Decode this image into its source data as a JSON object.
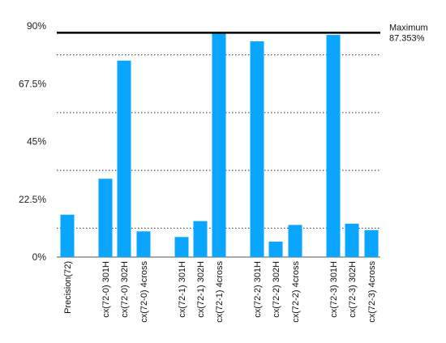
{
  "chart_data": {
    "type": "bar",
    "ylim": [
      0,
      90
    ],
    "yticks": [
      0,
      22.5,
      45,
      67.5,
      90
    ],
    "ytick_labels": [
      "0%",
      "22.5%",
      "45%",
      "67.5%",
      "90%"
    ],
    "grid_dotted": [
      11.25,
      33.75,
      56.25,
      78.75
    ],
    "categories": [
      "Precision(72)",
      "cx(72-0) 301H",
      "cx(72-0) 302H",
      "cx(72-0) 4cross",
      "cx(72-1) 301H",
      "cx(72-1) 302H",
      "cx(72-1) 4cross",
      "cx(72-2) 301H",
      "cx(72-2) 302H",
      "cx(72-2) 4cross",
      "cx(72-3) 301H",
      "cx(72-3) 302H",
      "cx(72-3) 4cross"
    ],
    "values": [
      16.5,
      30.5,
      76.5,
      10.0,
      7.8,
      14.0,
      87.353,
      84.0,
      6.0,
      12.5,
      86.5,
      13.0,
      10.5
    ],
    "max_line": {
      "value": 87.353,
      "label_line1": "Maximum",
      "label_line2": "87.353%"
    },
    "bar_color": "#0aa5ff",
    "grid": true
  }
}
